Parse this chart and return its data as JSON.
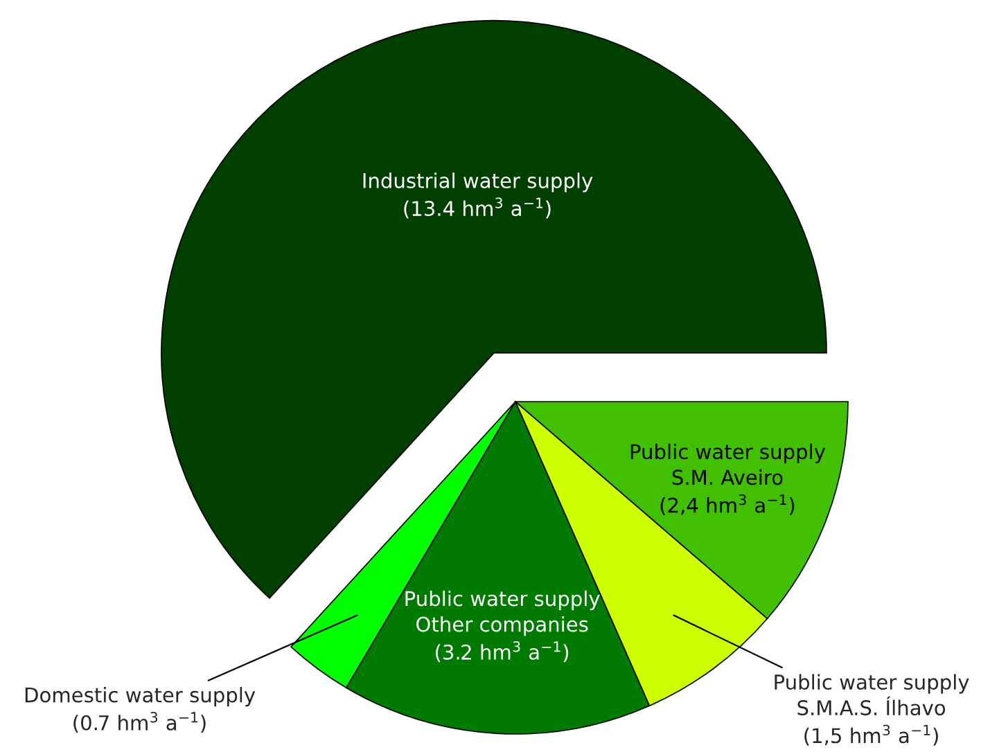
{
  "chart_data": {
    "type": "pie",
    "categories": [
      "Industrial water supply",
      "Domestic water supply",
      "Public water supply\nOther companies",
      "Public water supply\nS.M.A.S. Ílhavo",
      "Public water supply\nS.M. Aveiro"
    ],
    "values": [
      13.4,
      0.7,
      3.2,
      1.5,
      2.4
    ],
    "value_labels": [
      "(13.4 hm$^{3}$ a$^{−1}$)",
      "(0.7 hm$^{3}$ a$^{−1}$)",
      "(3.2 hm$^{3}$ a$^{−1}$)",
      "(1,5 hm$^{3}$ a$^{−1}$)",
      "(2,4 hm$^{3}$ a$^{−1}$)"
    ],
    "colors": [
      "#003f00",
      "#00ff00",
      "#007a00",
      "#ccff00",
      "#40c000"
    ],
    "legend": false
  }
}
